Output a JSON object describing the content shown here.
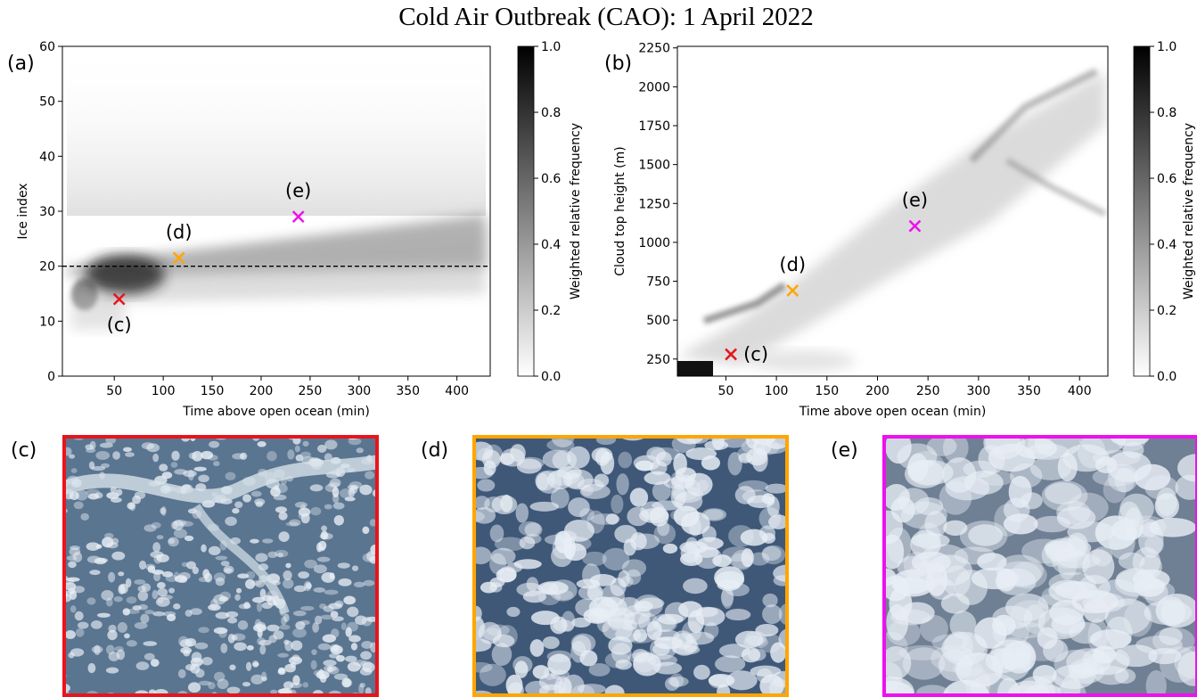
{
  "title": "Cold Air Outbreak (CAO): 1 April 2022",
  "chart_data": [
    {
      "type": "heatmap",
      "panel_label": "(a)",
      "xlabel": "Time above open ocean (min)",
      "ylabel": "Ice index",
      "xlim": [
        -3,
        434
      ],
      "ylim": [
        0,
        60
      ],
      "xticks": [
        50,
        100,
        150,
        200,
        250,
        300,
        350,
        400
      ],
      "yticks": [
        0,
        10,
        20,
        30,
        40,
        50,
        60
      ],
      "hline": {
        "y": 20,
        "style": "dashed",
        "color": "#000000"
      },
      "markers": [
        {
          "label": "(c)",
          "x": 55,
          "y": 14,
          "color": "#e8141c",
          "label_position": "below"
        },
        {
          "label": "(d)",
          "x": 116,
          "y": 21.5,
          "color": "#ffa500",
          "label_position": "above"
        },
        {
          "label": "(e)",
          "x": 238,
          "y": 29,
          "color": "#ee10ee",
          "label_position": "above"
        }
      ],
      "colorbar": {
        "label": "Weighted relative frequency",
        "lim": [
          0,
          1
        ],
        "ticks": [
          {
            "value": 0,
            "label": "0.0"
          },
          {
            "value": 0.2,
            "label": "0.2"
          },
          {
            "value": 0.4,
            "label": "0.4"
          },
          {
            "value": 0.6,
            "label": "0.6"
          },
          {
            "value": 0.8,
            "label": "0.8"
          },
          {
            "value": 1,
            "label": "1.0"
          }
        ]
      }
    },
    {
      "type": "heatmap",
      "panel_label": "(b)",
      "xlabel": "Time above open ocean (min)",
      "ylabel": "Cloud top height (m)",
      "xlim": [
        2,
        428
      ],
      "ylim": [
        140,
        2260
      ],
      "xticks": [
        50,
        100,
        150,
        200,
        250,
        300,
        350,
        400
      ],
      "yticks": [
        250,
        500,
        750,
        1000,
        1250,
        1500,
        1750,
        2000,
        2250
      ],
      "markers": [
        {
          "label": "(c)",
          "x": 55,
          "y": 280,
          "color": "#e8141c",
          "label_position": "right"
        },
        {
          "label": "(d)",
          "x": 116,
          "y": 690,
          "color": "#ffa500",
          "label_position": "above"
        },
        {
          "label": "(e)",
          "x": 237,
          "y": 1105,
          "color": "#ee10ee",
          "label_position": "above"
        }
      ],
      "colorbar": {
        "label": "Weighted relative frequency",
        "lim": [
          0,
          1
        ],
        "ticks": [
          {
            "value": 0,
            "label": "0.0"
          },
          {
            "value": 0.2,
            "label": "0.2"
          },
          {
            "value": 0.4,
            "label": "0.4"
          },
          {
            "value": 0.6,
            "label": "0.6"
          },
          {
            "value": 0.8,
            "label": "0.8"
          },
          {
            "value": 1,
            "label": "1.0"
          }
        ]
      }
    }
  ],
  "photos": [
    {
      "label": "(c)",
      "color": "#e8141c"
    },
    {
      "label": "(d)",
      "color": "#ffa500"
    },
    {
      "label": "(e)",
      "color": "#ee10ee"
    }
  ]
}
